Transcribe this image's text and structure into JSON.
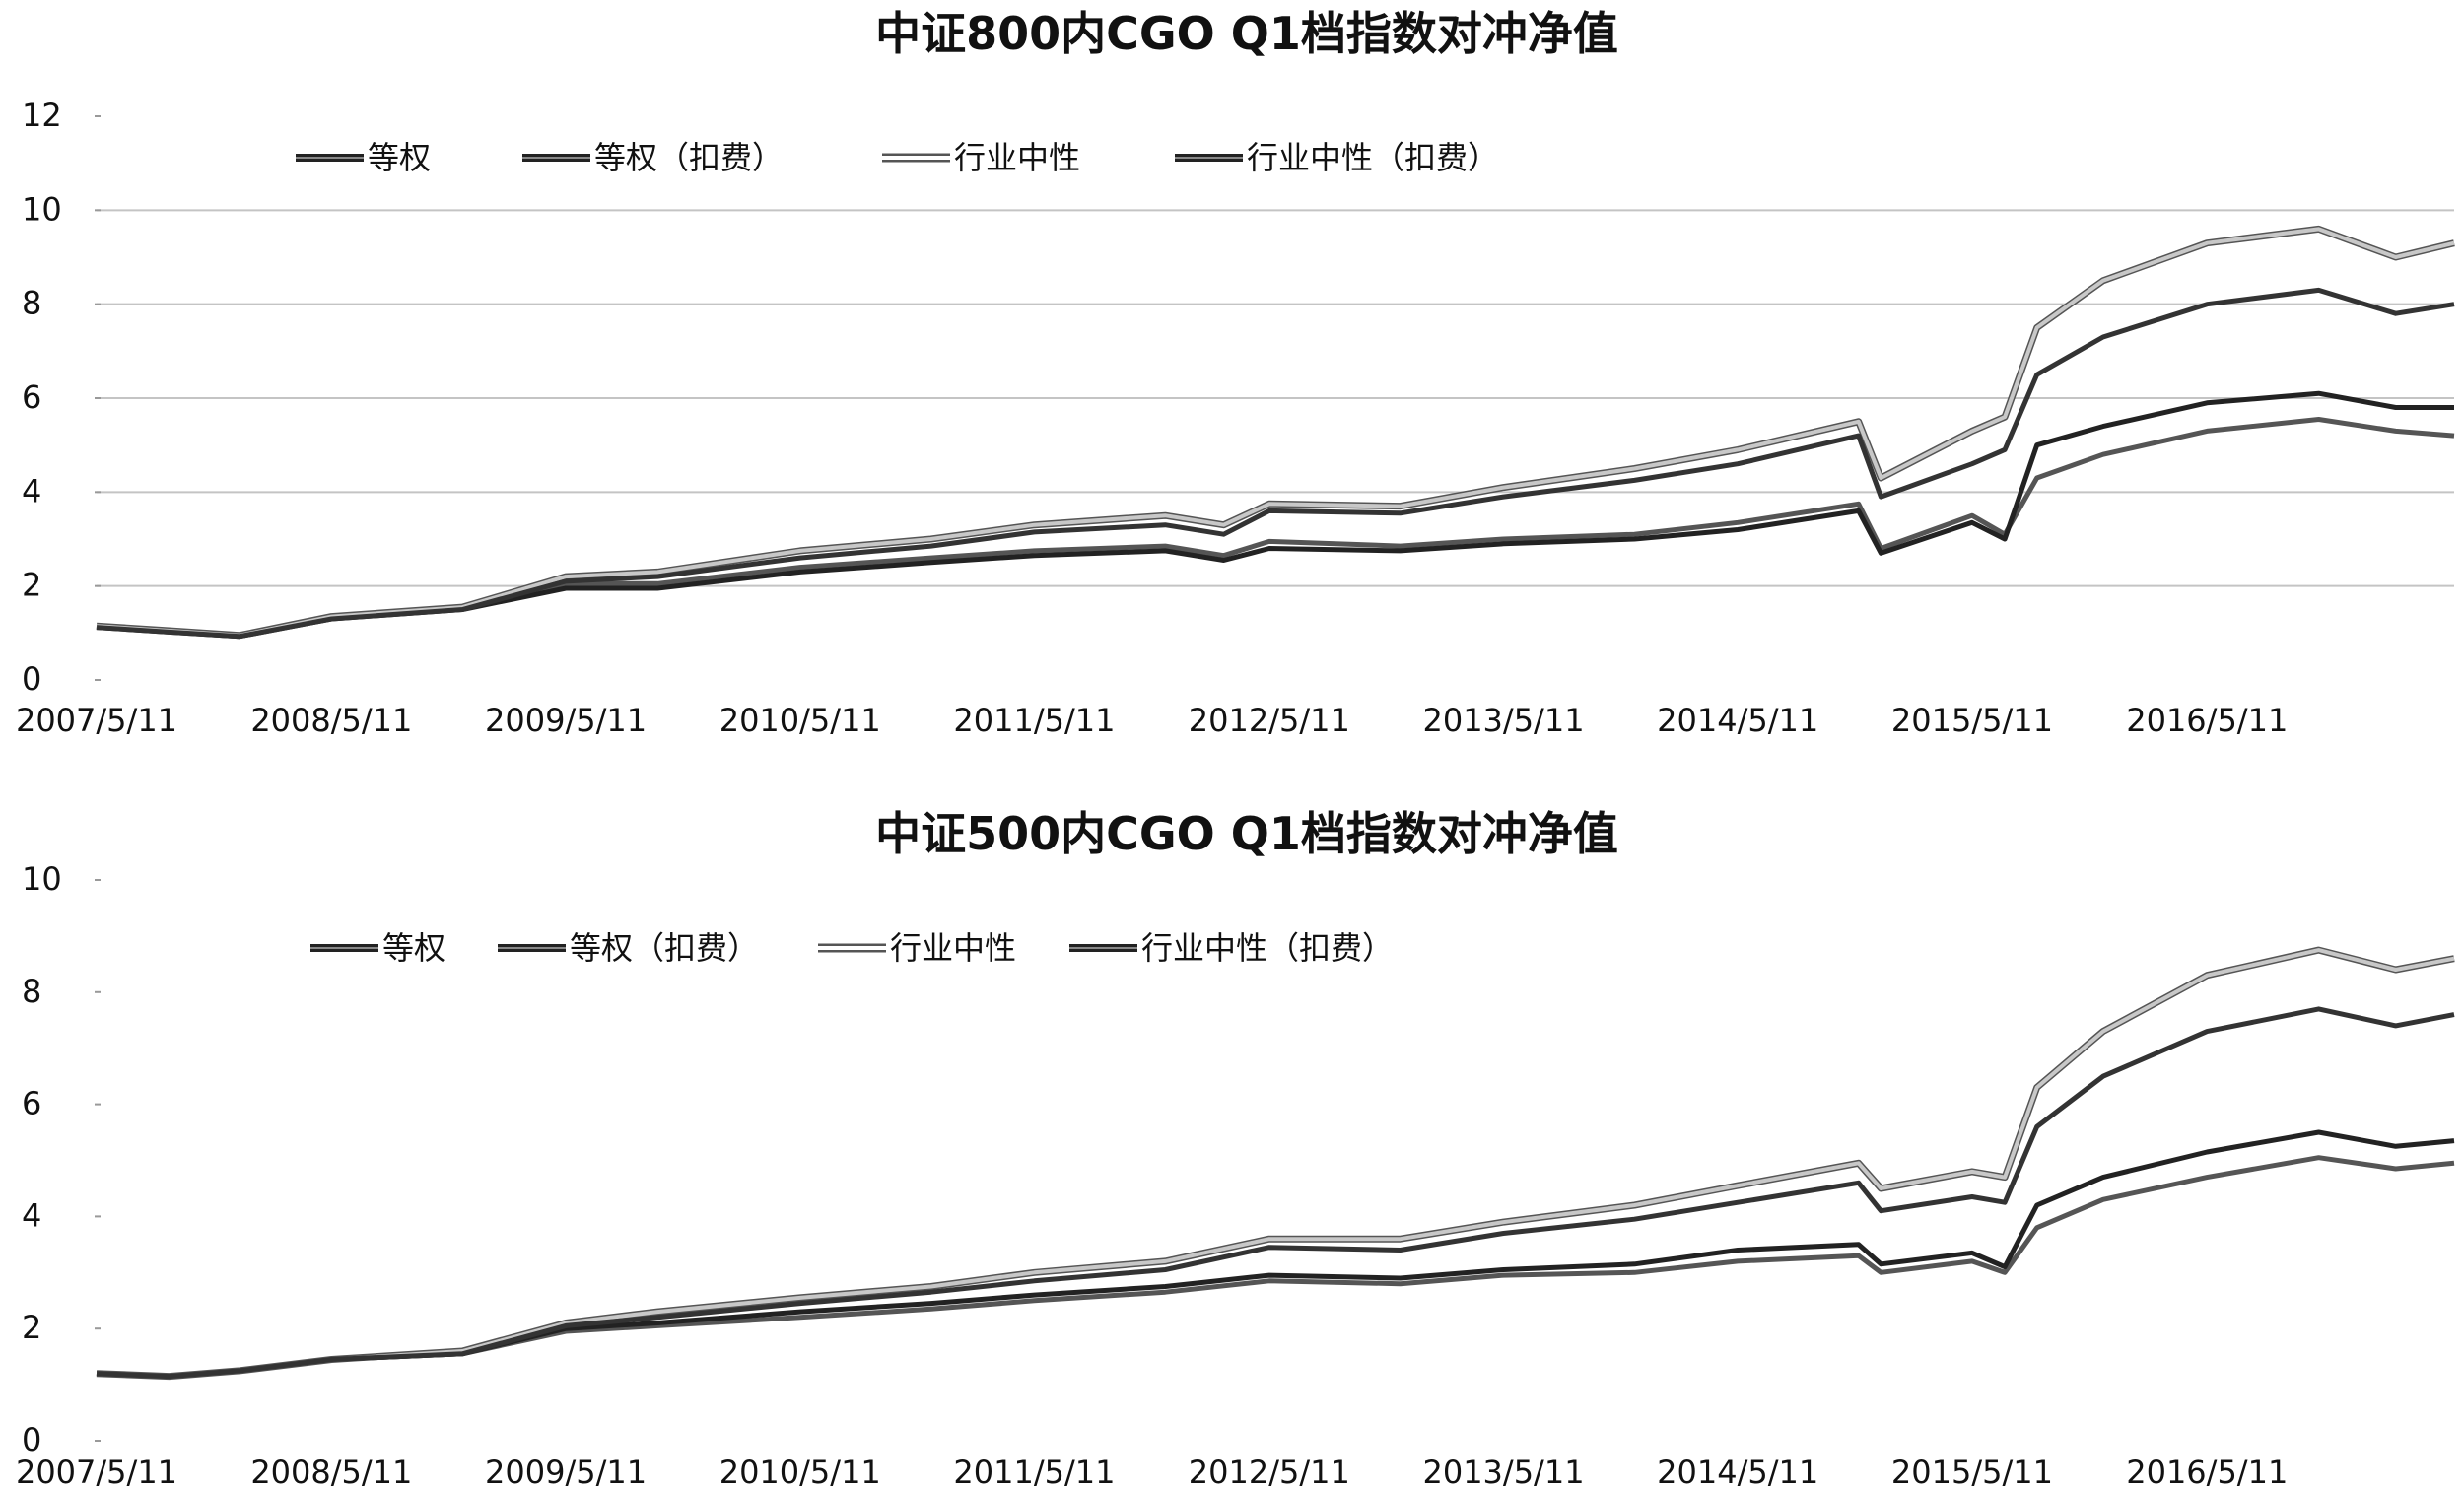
{
  "chart_data": [
    {
      "type": "line",
      "title": "中证800内CGO Q1档指数对冲净值",
      "xlabel": "",
      "ylabel": "",
      "ylim": [
        0,
        12
      ],
      "yticks": [
        "0",
        "2",
        "4",
        "6",
        "8",
        "10",
        "12"
      ],
      "x_range": [
        "2007-05-11",
        "2017-05-31"
      ],
      "x_ticks": [
        "2007/5/11",
        "2008/5/11",
        "2009/5/11",
        "2010/5/11",
        "2011/5/11",
        "2012/5/11",
        "2013/5/11",
        "2014/5/11",
        "2015/5/11",
        "2016/5/11"
      ],
      "grid": "horizontal",
      "legend_position": "top-left",
      "series": [
        {
          "name": "等权",
          "color": "#555555",
          "points": [
            [
              "2007-05-11",
              1.15
            ],
            [
              "2007-09-01",
              1.05
            ],
            [
              "2007-12-20",
              0.95
            ],
            [
              "2008-05-11",
              1.35
            ],
            [
              "2008-12-01",
              1.55
            ],
            [
              "2009-05-11",
              2.05
            ],
            [
              "2009-10-01",
              2.05
            ],
            [
              "2010-05-11",
              2.4
            ],
            [
              "2010-12-01",
              2.6
            ],
            [
              "2011-05-11",
              2.75
            ],
            [
              "2011-12-01",
              2.85
            ],
            [
              "2012-03-01",
              2.65
            ],
            [
              "2012-05-11",
              2.95
            ],
            [
              "2012-12-01",
              2.85
            ],
            [
              "2013-05-11",
              3.0
            ],
            [
              "2013-12-01",
              3.1
            ],
            [
              "2014-05-11",
              3.35
            ],
            [
              "2014-11-15",
              3.75
            ],
            [
              "2014-12-20",
              2.8
            ],
            [
              "2015-05-11",
              3.5
            ],
            [
              "2015-07-01",
              3.1
            ],
            [
              "2015-08-20",
              4.3
            ],
            [
              "2015-12-01",
              4.8
            ],
            [
              "2016-05-11",
              5.3
            ],
            [
              "2016-11-01",
              5.55
            ],
            [
              "2017-03-01",
              5.3
            ],
            [
              "2017-05-31",
              5.2
            ]
          ]
        },
        {
          "name": "等权（扣费）",
          "color": "#222222",
          "points": [
            [
              "2007-05-11",
              1.12
            ],
            [
              "2007-09-01",
              1.02
            ],
            [
              "2007-12-20",
              0.93
            ],
            [
              "2008-05-11",
              1.3
            ],
            [
              "2008-12-01",
              1.5
            ],
            [
              "2009-05-11",
              1.95
            ],
            [
              "2009-10-01",
              1.95
            ],
            [
              "2010-05-11",
              2.3
            ],
            [
              "2010-12-01",
              2.5
            ],
            [
              "2011-05-11",
              2.65
            ],
            [
              "2011-12-01",
              2.75
            ],
            [
              "2012-03-01",
              2.55
            ],
            [
              "2012-05-11",
              2.8
            ],
            [
              "2012-12-01",
              2.75
            ],
            [
              "2013-05-11",
              2.9
            ],
            [
              "2013-12-01",
              3.0
            ],
            [
              "2014-05-11",
              3.2
            ],
            [
              "2014-11-15",
              3.6
            ],
            [
              "2014-12-20",
              2.7
            ],
            [
              "2015-05-11",
              3.35
            ],
            [
              "2015-07-01",
              3.0
            ],
            [
              "2015-08-20",
              5.0
            ],
            [
              "2015-12-01",
              5.4
            ],
            [
              "2016-05-11",
              5.9
            ],
            [
              "2016-11-01",
              6.1
            ],
            [
              "2017-03-01",
              5.8
            ],
            [
              "2017-05-31",
              5.8
            ]
          ]
        },
        {
          "name": "行业中性",
          "color": "#c8c8c8",
          "points": [
            [
              "2007-05-11",
              1.15
            ],
            [
              "2007-09-01",
              1.05
            ],
            [
              "2007-12-20",
              0.95
            ],
            [
              "2008-05-11",
              1.35
            ],
            [
              "2008-12-01",
              1.55
            ],
            [
              "2009-05-11",
              2.2
            ],
            [
              "2009-10-01",
              2.3
            ],
            [
              "2010-05-11",
              2.75
            ],
            [
              "2010-12-01",
              3.0
            ],
            [
              "2011-05-11",
              3.3
            ],
            [
              "2011-12-01",
              3.5
            ],
            [
              "2012-03-01",
              3.3
            ],
            [
              "2012-05-11",
              3.75
            ],
            [
              "2012-12-01",
              3.7
            ],
            [
              "2013-05-11",
              4.1
            ],
            [
              "2013-12-01",
              4.5
            ],
            [
              "2014-05-11",
              4.9
            ],
            [
              "2014-11-15",
              5.5
            ],
            [
              "2014-12-20",
              4.3
            ],
            [
              "2015-05-11",
              5.3
            ],
            [
              "2015-07-01",
              5.6
            ],
            [
              "2015-08-20",
              7.5
            ],
            [
              "2015-12-01",
              8.5
            ],
            [
              "2016-05-11",
              9.3
            ],
            [
              "2016-11-01",
              9.6
            ],
            [
              "2017-03-01",
              9.0
            ],
            [
              "2017-05-31",
              9.3
            ]
          ]
        },
        {
          "name": "行业中性（扣费）",
          "color": "#333333",
          "points": [
            [
              "2007-05-11",
              1.12
            ],
            [
              "2007-09-01",
              1.02
            ],
            [
              "2007-12-20",
              0.93
            ],
            [
              "2008-05-11",
              1.3
            ],
            [
              "2008-12-01",
              1.5
            ],
            [
              "2009-05-11",
              2.1
            ],
            [
              "2009-10-01",
              2.2
            ],
            [
              "2010-05-11",
              2.6
            ],
            [
              "2010-12-01",
              2.85
            ],
            [
              "2011-05-11",
              3.15
            ],
            [
              "2011-12-01",
              3.3
            ],
            [
              "2012-03-01",
              3.1
            ],
            [
              "2012-05-11",
              3.6
            ],
            [
              "2012-12-01",
              3.55
            ],
            [
              "2013-05-11",
              3.9
            ],
            [
              "2013-12-01",
              4.25
            ],
            [
              "2014-05-11",
              4.6
            ],
            [
              "2014-11-15",
              5.2
            ],
            [
              "2014-12-20",
              3.9
            ],
            [
              "2015-05-11",
              4.6
            ],
            [
              "2015-07-01",
              4.9
            ],
            [
              "2015-08-20",
              6.5
            ],
            [
              "2015-12-01",
              7.3
            ],
            [
              "2016-05-11",
              8.0
            ],
            [
              "2016-11-01",
              8.3
            ],
            [
              "2017-03-01",
              7.8
            ],
            [
              "2017-05-31",
              8.0
            ]
          ]
        }
      ]
    },
    {
      "type": "line",
      "title": "中证500内CGO Q1档指数对冲净值",
      "xlabel": "",
      "ylabel": "",
      "ylim": [
        0,
        10
      ],
      "yticks": [
        "0",
        "2",
        "4",
        "6",
        "8",
        "10"
      ],
      "x_range": [
        "2007-05-11",
        "2017-05-31"
      ],
      "x_ticks": [
        "2007/5/11",
        "2008/5/11",
        "2009/5/11",
        "2010/5/11",
        "2011/5/11",
        "2012/5/11",
        "2013/5/11",
        "2014/5/11",
        "2015/5/11",
        "2016/5/11"
      ],
      "grid": "none",
      "legend_position": "top-left",
      "series": [
        {
          "name": "等权",
          "color": "#555555",
          "points": [
            [
              "2007-05-11",
              1.2
            ],
            [
              "2007-09-01",
              1.15
            ],
            [
              "2007-12-20",
              1.25
            ],
            [
              "2008-05-11",
              1.45
            ],
            [
              "2008-12-01",
              1.55
            ],
            [
              "2009-05-11",
              1.95
            ],
            [
              "2009-10-01",
              2.05
            ],
            [
              "2010-05-11",
              2.2
            ],
            [
              "2010-12-01",
              2.35
            ],
            [
              "2011-05-11",
              2.5
            ],
            [
              "2011-12-01",
              2.65
            ],
            [
              "2012-05-11",
              2.85
            ],
            [
              "2012-12-01",
              2.8
            ],
            [
              "2013-05-11",
              2.95
            ],
            [
              "2013-12-01",
              3.0
            ],
            [
              "2014-05-11",
              3.2
            ],
            [
              "2014-11-15",
              3.3
            ],
            [
              "2014-12-20",
              3.0
            ],
            [
              "2015-05-11",
              3.2
            ],
            [
              "2015-07-01",
              3.0
            ],
            [
              "2015-08-20",
              3.8
            ],
            [
              "2015-12-01",
              4.3
            ],
            [
              "2016-05-11",
              4.7
            ],
            [
              "2016-11-01",
              5.05
            ],
            [
              "2017-03-01",
              4.85
            ],
            [
              "2017-05-31",
              4.95
            ]
          ]
        },
        {
          "name": "等权（扣费）",
          "color": "#222222",
          "points": [
            [
              "2007-05-11",
              1.2
            ],
            [
              "2007-09-01",
              1.15
            ],
            [
              "2007-12-20",
              1.25
            ],
            [
              "2008-05-11",
              1.45
            ],
            [
              "2008-12-01",
              1.55
            ],
            [
              "2009-05-11",
              2.0
            ],
            [
              "2009-10-01",
              2.1
            ],
            [
              "2010-05-11",
              2.3
            ],
            [
              "2010-12-01",
              2.45
            ],
            [
              "2011-05-11",
              2.6
            ],
            [
              "2011-12-01",
              2.75
            ],
            [
              "2012-05-11",
              2.95
            ],
            [
              "2012-12-01",
              2.9
            ],
            [
              "2013-05-11",
              3.05
            ],
            [
              "2013-12-01",
              3.15
            ],
            [
              "2014-05-11",
              3.4
            ],
            [
              "2014-11-15",
              3.5
            ],
            [
              "2014-12-20",
              3.15
            ],
            [
              "2015-05-11",
              3.35
            ],
            [
              "2015-07-01",
              3.1
            ],
            [
              "2015-08-20",
              4.2
            ],
            [
              "2015-12-01",
              4.7
            ],
            [
              "2016-05-11",
              5.15
            ],
            [
              "2016-11-01",
              5.5
            ],
            [
              "2017-03-01",
              5.25
            ],
            [
              "2017-05-31",
              5.35
            ]
          ]
        },
        {
          "name": "行业中性",
          "color": "#c8c8c8",
          "points": [
            [
              "2007-05-11",
              1.2
            ],
            [
              "2007-09-01",
              1.15
            ],
            [
              "2007-12-20",
              1.25
            ],
            [
              "2008-05-11",
              1.45
            ],
            [
              "2008-12-01",
              1.6
            ],
            [
              "2009-05-11",
              2.1
            ],
            [
              "2009-10-01",
              2.3
            ],
            [
              "2010-05-11",
              2.55
            ],
            [
              "2010-12-01",
              2.75
            ],
            [
              "2011-05-11",
              3.0
            ],
            [
              "2011-12-01",
              3.2
            ],
            [
              "2012-05-11",
              3.6
            ],
            [
              "2012-12-01",
              3.6
            ],
            [
              "2013-05-11",
              3.9
            ],
            [
              "2013-12-01",
              4.2
            ],
            [
              "2014-05-11",
              4.55
            ],
            [
              "2014-11-15",
              4.95
            ],
            [
              "2014-12-20",
              4.5
            ],
            [
              "2015-05-11",
              4.8
            ],
            [
              "2015-07-01",
              4.7
            ],
            [
              "2015-08-20",
              6.3
            ],
            [
              "2015-12-01",
              7.3
            ],
            [
              "2016-05-11",
              8.3
            ],
            [
              "2016-11-01",
              8.75
            ],
            [
              "2017-03-01",
              8.4
            ],
            [
              "2017-05-31",
              8.6
            ]
          ]
        },
        {
          "name": "行业中性（扣费）",
          "color": "#333333",
          "points": [
            [
              "2007-05-11",
              1.2
            ],
            [
              "2007-09-01",
              1.15
            ],
            [
              "2007-12-20",
              1.25
            ],
            [
              "2008-05-11",
              1.45
            ],
            [
              "2008-12-01",
              1.55
            ],
            [
              "2009-05-11",
              2.05
            ],
            [
              "2009-10-01",
              2.2
            ],
            [
              "2010-05-11",
              2.45
            ],
            [
              "2010-12-01",
              2.65
            ],
            [
              "2011-05-11",
              2.85
            ],
            [
              "2011-12-01",
              3.05
            ],
            [
              "2012-05-11",
              3.45
            ],
            [
              "2012-12-01",
              3.4
            ],
            [
              "2013-05-11",
              3.7
            ],
            [
              "2013-12-01",
              3.95
            ],
            [
              "2014-05-11",
              4.25
            ],
            [
              "2014-11-15",
              4.6
            ],
            [
              "2014-12-20",
              4.1
            ],
            [
              "2015-05-11",
              4.35
            ],
            [
              "2015-07-01",
              4.25
            ],
            [
              "2015-08-20",
              5.6
            ],
            [
              "2015-12-01",
              6.5
            ],
            [
              "2016-05-11",
              7.3
            ],
            [
              "2016-11-01",
              7.7
            ],
            [
              "2017-03-01",
              7.4
            ],
            [
              "2017-05-31",
              7.6
            ]
          ]
        }
      ]
    }
  ]
}
